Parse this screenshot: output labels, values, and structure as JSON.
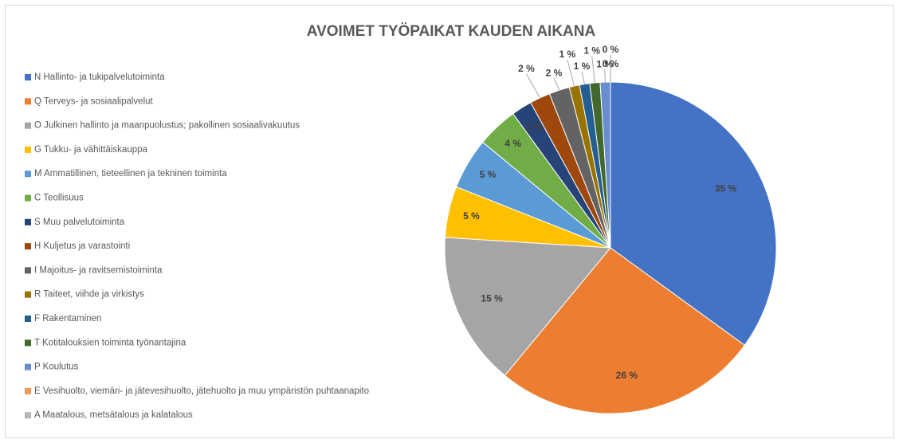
{
  "chart_data": {
    "type": "pie",
    "title": "AVOIMET TYÖPAIKAT KAUDEN AIKANA",
    "categories": [
      "N Hallinto- ja tukipalvelutoiminta",
      "Q Terveys- ja sosiaalipalvelut",
      "O Julkinen hallinto ja maanpuolustus; pakollinen sosiaalivakuutus",
      "G Tukku- ja vähittäiskauppa",
      "M Ammatillinen, tieteellinen ja tekninen toiminta",
      "C Teollisuus",
      "S Muu palvelutoiminta",
      "H Kuljetus ja varastointi",
      "I Majoitus- ja ravitsemistoiminta",
      "R Taiteet, viihde ja virkistys",
      "F Rakentaminen",
      "T Kotitalouksien toiminta työnantajina",
      "P Koulutus",
      "E Vesihuolto, viemäri- ja jätevesihuolto, jätehuolto ja muu ympäristön puhtaanapito",
      "A Maatalous, metsätalous ja kalatalous"
    ],
    "values": [
      35,
      26,
      15,
      5,
      5,
      4,
      2,
      2,
      2,
      1,
      1,
      1,
      1,
      0,
      0
    ],
    "value_labels": [
      "35 %",
      "26 %",
      "15 %",
      "5 %",
      "5 %",
      "4 %",
      "2 %",
      "2 %",
      "2 %",
      "1 %",
      "1 %",
      "1 %",
      "1 %",
      "0 %",
      "0 %"
    ],
    "colors": [
      "#4472c4",
      "#ed7d31",
      "#a5a5a5",
      "#ffc000",
      "#5b9bd5",
      "#70ad47",
      "#264478",
      "#9e480e",
      "#636363",
      "#997300",
      "#255e91",
      "#43682b",
      "#698ed0",
      "#f1975a",
      "#b7b7b7"
    ],
    "legend": "left"
  }
}
